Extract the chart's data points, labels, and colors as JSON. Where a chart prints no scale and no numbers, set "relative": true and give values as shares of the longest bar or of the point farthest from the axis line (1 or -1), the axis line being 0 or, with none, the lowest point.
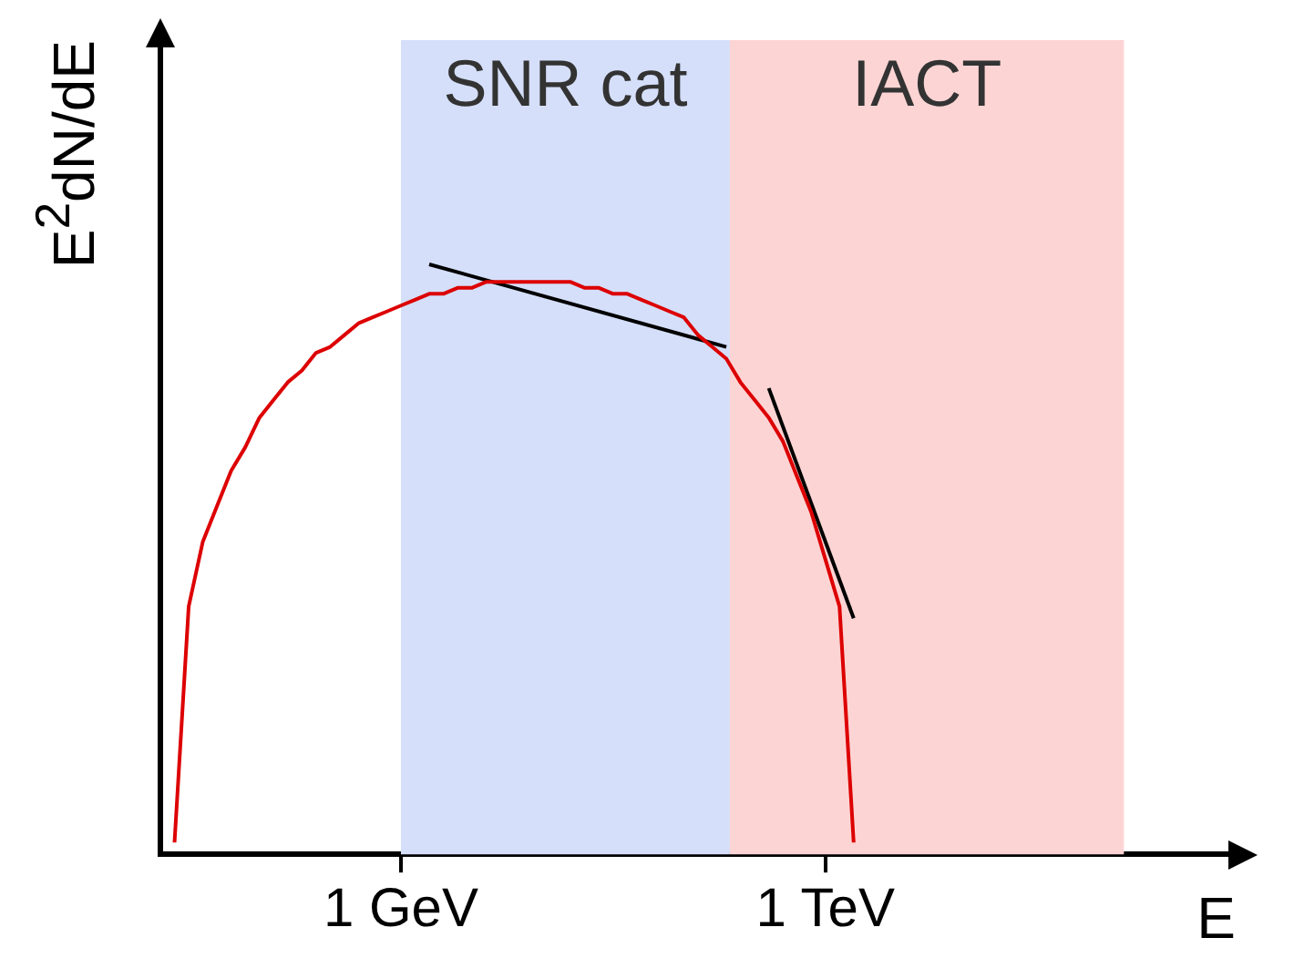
{
  "chart_data": {
    "type": "line",
    "relative": true,
    "ylabel": "E$^{2}$dN/dE",
    "xlabel": "E",
    "categories": [
      null,
      null,
      null,
      null,
      null,
      null,
      null,
      null,
      null,
      null,
      null,
      null,
      null,
      null,
      null,
      null,
      null,
      "1 GeV",
      null,
      null,
      null,
      null,
      null,
      null,
      null,
      null,
      null,
      null,
      null,
      null,
      null,
      null,
      null,
      null,
      null,
      null,
      null,
      null,
      null,
      null,
      null,
      null,
      null,
      null,
      null,
      null,
      null,
      "1 TeV",
      null,
      null,
      null,
      null,
      null,
      null,
      null,
      null,
      null,
      null,
      null,
      null,
      null,
      null,
      null,
      null,
      null,
      null,
      null,
      null,
      null,
      null,
      null,
      null,
      null,
      null,
      null,
      null,
      null
    ],
    "annotations": [
      "SNR cat",
      "IACT"
    ],
    "series": [
      {
        "color": "#dd0000",
        "values": [
          null,
          0.02,
          0.42,
          0.53,
          0.59,
          0.65,
          0.69,
          0.74,
          0.77,
          0.8,
          0.82,
          0.85,
          0.86,
          0.88,
          0.9,
          0.91,
          0.92,
          0.93,
          0.94,
          0.95,
          0.95,
          0.96,
          0.96,
          0.97,
          0.97,
          0.97,
          0.97,
          0.97,
          0.97,
          0.97,
          0.96,
          0.96,
          0.95,
          0.95,
          0.94,
          0.93,
          0.92,
          0.91,
          0.88,
          0.86,
          0.84,
          0.8,
          0.77,
          0.74,
          0.7,
          0.64,
          0.58,
          0.5,
          0.42,
          0.02,
          null,
          null,
          null,
          null,
          null,
          null,
          null,
          null,
          null,
          null,
          null,
          null,
          null,
          null,
          null,
          null,
          null,
          null,
          null,
          null,
          null,
          null,
          null,
          null,
          null,
          null,
          null
        ]
      },
      {
        "color": "#000000",
        "values": [
          null,
          null,
          null,
          null,
          null,
          null,
          null,
          null,
          null,
          null,
          null,
          null,
          null,
          null,
          null,
          null,
          null,
          null,
          null,
          1.0,
          null,
          null,
          null,
          null,
          null,
          null,
          null,
          null,
          null,
          null,
          null,
          null,
          null,
          null,
          null,
          null,
          null,
          null,
          null,
          null,
          0.86,
          null,
          null,
          null,
          null,
          null,
          null,
          null,
          null,
          null,
          null,
          null,
          null,
          null,
          null,
          null,
          null,
          null,
          null,
          null,
          null,
          null,
          null,
          null,
          null,
          null,
          null,
          null,
          null,
          null,
          null,
          null,
          null,
          null,
          null,
          null,
          null
        ]
      },
      {
        "color": "#000000",
        "values": [
          null,
          null,
          null,
          null,
          null,
          null,
          null,
          null,
          null,
          null,
          null,
          null,
          null,
          null,
          null,
          null,
          null,
          null,
          null,
          null,
          null,
          null,
          null,
          null,
          null,
          null,
          null,
          null,
          null,
          null,
          null,
          null,
          null,
          null,
          null,
          null,
          null,
          null,
          null,
          null,
          null,
          null,
          null,
          0.79,
          null,
          null,
          null,
          null,
          null,
          0.4,
          null,
          null,
          null,
          null,
          null,
          null,
          null,
          null,
          null,
          null,
          null,
          null,
          null,
          null,
          null,
          null,
          null,
          null,
          null,
          null,
          null,
          null,
          null,
          null,
          null,
          null,
          null
        ]
      }
    ],
    "grid": false,
    "legend": false,
    "marker": "none",
    "line_style": "solid"
  }
}
